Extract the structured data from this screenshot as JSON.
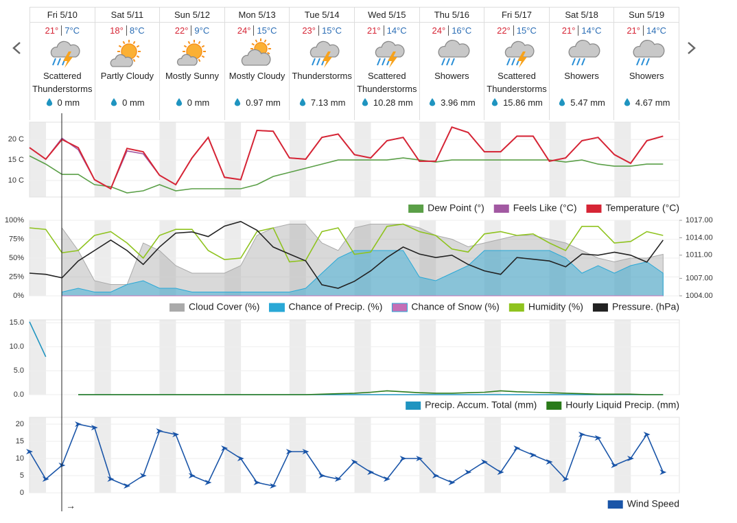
{
  "forecast": {
    "days": [
      {
        "day": "Fri 5/10",
        "hi": "21°",
        "lo": "7°C",
        "condition": "Scattered Thunderstorms",
        "precip": "0 mm"
      },
      {
        "day": "Sat 5/11",
        "hi": "18°",
        "lo": "8°C",
        "condition": "Partly Cloudy",
        "precip": "0 mm"
      },
      {
        "day": "Sun 5/12",
        "hi": "22°",
        "lo": "9°C",
        "condition": "Mostly Sunny",
        "precip": "0 mm"
      },
      {
        "day": "Mon 5/13",
        "hi": "24°",
        "lo": "15°C",
        "condition": "Mostly Cloudy",
        "precip": "0.97 mm"
      },
      {
        "day": "Tue 5/14",
        "hi": "23°",
        "lo": "15°C",
        "condition": "Thunderstorms",
        "precip": "7.13 mm"
      },
      {
        "day": "Wed 5/15",
        "hi": "21°",
        "lo": "14°C",
        "condition": "Scattered Thunderstorms",
        "precip": "10.28 mm"
      },
      {
        "day": "Thu 5/16",
        "hi": "24°",
        "lo": "16°C",
        "condition": "Showers",
        "precip": "3.96 mm"
      },
      {
        "day": "Fri 5/17",
        "hi": "22°",
        "lo": "15°C",
        "condition": "Scattered Thunderstorms",
        "precip": "15.86 mm"
      },
      {
        "day": "Sat 5/18",
        "hi": "21°",
        "lo": "14°C",
        "condition": "Showers",
        "precip": "5.47 mm"
      },
      {
        "day": "Sun 5/19",
        "hi": "21°",
        "lo": "14°C",
        "condition": "Showers",
        "precip": "4.67 mm"
      }
    ]
  },
  "chart_data": [
    {
      "type": "line",
      "ylim": [
        6,
        24.2
      ],
      "yticks": [
        {
          "value": 10,
          "label": "10 C"
        },
        {
          "value": 15,
          "label": "15 C"
        },
        {
          "value": 20,
          "label": "20 C"
        }
      ],
      "series": [
        {
          "name": "Dew Point (°)",
          "color": "#5a9f47",
          "values": [
            16,
            14,
            11.5,
            11.5,
            9,
            8.5,
            7,
            7.5,
            9,
            7.5,
            8,
            8,
            8,
            8,
            9,
            11,
            12,
            13,
            14,
            15,
            15,
            15,
            15,
            15.5,
            15,
            14.5,
            15,
            15,
            15,
            15,
            15,
            15,
            15,
            14.5,
            15,
            14,
            13.5,
            13.5,
            14,
            14
          ]
        },
        {
          "name": "Feels Like (°C)",
          "color": "#a259a2",
          "values": [
            18,
            15.2,
            20.3,
            17.5,
            10.2,
            8,
            17.2,
            16.5,
            11.3,
            9,
            15.5,
            20.5,
            10.8,
            10.2,
            22.2,
            22,
            15.5,
            15.2,
            20.5,
            21.3,
            16.3,
            15.5,
            19.7,
            20.5,
            14.7,
            14.7,
            23,
            21.7,
            17,
            17,
            20.8,
            20.8,
            14.7,
            15.5,
            19.7,
            20.5,
            16.3,
            14.2,
            19.7,
            20.8
          ]
        },
        {
          "name": "Temperature (°C)",
          "color": "#d62535",
          "values": [
            18,
            15.2,
            20,
            18,
            10.2,
            8,
            17.8,
            17,
            11.3,
            9,
            15.5,
            20.5,
            10.8,
            10.2,
            22.2,
            22,
            15.5,
            15.2,
            20.5,
            21.3,
            16.3,
            15.5,
            19.7,
            20.5,
            14.7,
            14.7,
            23,
            21.7,
            17,
            17,
            20.8,
            20.8,
            14.7,
            15.5,
            19.7,
            20.5,
            16.3,
            14.2,
            19.7,
            20.8
          ]
        }
      ]
    },
    {
      "type": "line",
      "ylim": [
        0,
        100
      ],
      "yticks": [
        {
          "value": 0,
          "label": "0%"
        },
        {
          "value": 25,
          "label": "25%"
        },
        {
          "value": 50,
          "label": "50%"
        },
        {
          "value": 75,
          "label": "75%"
        },
        {
          "value": 100,
          "label": "100%"
        }
      ],
      "y2lim": [
        1004,
        1017
      ],
      "y2ticks": [
        {
          "value": 1004,
          "label": "1004.00"
        },
        {
          "value": 1007,
          "label": "1007.00"
        },
        {
          "value": 1011,
          "label": "1011.00"
        },
        {
          "value": 1014,
          "label": "1014.00"
        },
        {
          "value": 1017,
          "label": "1017.00"
        }
      ],
      "series": [
        {
          "name": "Cloud Cover (%)",
          "color": "#aaaaaa",
          "area": true,
          "values": [
            null,
            null,
            90,
            60,
            20,
            15,
            15,
            70,
            60,
            40,
            30,
            30,
            30,
            40,
            80,
            90,
            95,
            95,
            70,
            60,
            90,
            95,
            95,
            95,
            90,
            80,
            75,
            65,
            70,
            75,
            80,
            80,
            75,
            70,
            60,
            50,
            45,
            50,
            50,
            55
          ]
        },
        {
          "name": "Chance of Precip. (%)",
          "color": "#29a8d6",
          "area": true,
          "values": [
            null,
            null,
            5,
            10,
            5,
            5,
            15,
            20,
            10,
            10,
            5,
            5,
            5,
            5,
            5,
            5,
            5,
            10,
            30,
            50,
            60,
            60,
            60,
            60,
            25,
            20,
            30,
            40,
            60,
            60,
            60,
            60,
            60,
            50,
            30,
            40,
            30,
            40,
            45,
            30
          ]
        },
        {
          "name": "Chance of Snow (%)",
          "color": "#c56fb6",
          "area": true,
          "values": [
            null,
            null,
            0,
            0,
            0,
            0,
            0,
            0,
            0,
            0,
            0,
            0,
            0,
            0,
            0,
            0,
            0,
            0,
            0,
            0,
            0,
            0,
            0,
            0,
            0,
            0,
            0,
            0,
            0,
            0,
            0,
            0,
            0,
            0,
            0,
            0,
            0,
            0,
            0,
            0
          ]
        },
        {
          "name": "Humidity (%)",
          "color": "#8fc31f",
          "values": [
            90,
            88,
            57,
            60,
            80,
            85,
            70,
            50,
            80,
            88,
            88,
            60,
            48,
            50,
            85,
            90,
            45,
            47,
            85,
            90,
            55,
            58,
            92,
            95,
            85,
            80,
            62,
            58,
            82,
            85,
            80,
            82,
            70,
            60,
            92,
            92,
            70,
            72,
            85,
            80
          ]
        },
        {
          "name": "Pressure. (hPa)",
          "color": "#222222",
          "axis": "y2",
          "values": [
            1007.9,
            1007.7,
            1007.1,
            1010,
            1011.8,
            1013.6,
            1011.8,
            1009.4,
            1012.4,
            1014.8,
            1015,
            1014.2,
            1016,
            1016.8,
            1015.3,
            1012.4,
            1011.2,
            1010,
            1005.9,
            1005.3,
            1006.5,
            1008.3,
            1010.6,
            1012.4,
            1011.2,
            1010.6,
            1011,
            1009.4,
            1008.3,
            1007.7,
            1010.6,
            1010.3,
            1010,
            1009,
            1011.2,
            1011,
            1011.5,
            1011,
            1009.8,
            1013.6
          ]
        }
      ]
    },
    {
      "type": "line",
      "ylim": [
        0,
        15.6
      ],
      "yticks": [
        {
          "value": 0,
          "label": "0.0"
        },
        {
          "value": 5,
          "label": "5.0"
        },
        {
          "value": 10,
          "label": "10.0"
        },
        {
          "value": 15,
          "label": "15.0"
        }
      ],
      "series": [
        {
          "name": "Precip. Accum. Total (mm)",
          "color": "#1f94c0",
          "values": [
            15.2,
            7.9,
            null,
            0,
            0,
            0,
            0,
            0,
            0,
            0,
            0,
            0,
            0,
            0,
            0,
            0,
            0,
            0,
            0,
            0,
            0,
            0,
            0,
            0,
            0,
            0,
            0,
            0,
            0,
            0,
            0,
            0,
            0,
            0,
            0,
            0,
            0,
            0,
            0,
            0
          ]
        },
        {
          "name": "Hourly Liquid Precip. (mm)",
          "color": "#2a7a1a",
          "values": [
            null,
            null,
            null,
            0,
            0,
            0,
            0,
            0,
            0,
            0,
            0,
            0,
            0,
            0,
            0,
            0,
            0,
            0,
            0.1,
            0.2,
            0.3,
            0.5,
            0.8,
            0.6,
            0.4,
            0.3,
            0.3,
            0.4,
            0.5,
            0.8,
            0.6,
            0.5,
            0.4,
            0.3,
            0.2,
            0.1,
            0.1,
            0.1,
            0,
            0
          ]
        }
      ]
    },
    {
      "type": "line",
      "ylim": [
        0,
        22
      ],
      "yticks": [
        0,
        5,
        10,
        15,
        20
      ],
      "annotation": "→",
      "series": [
        {
          "name": "Wind Speed",
          "color": "#1a55a8",
          "markers": true,
          "values": [
            12,
            4,
            8,
            20,
            19,
            4,
            2,
            5,
            18,
            17,
            5,
            3,
            13,
            10,
            3,
            2,
            12,
            12,
            5,
            4,
            9,
            6,
            4,
            10,
            10,
            5,
            3,
            6,
            9,
            6,
            13,
            11,
            9,
            4,
            17,
            16,
            8,
            10,
            17,
            6
          ]
        }
      ]
    }
  ]
}
